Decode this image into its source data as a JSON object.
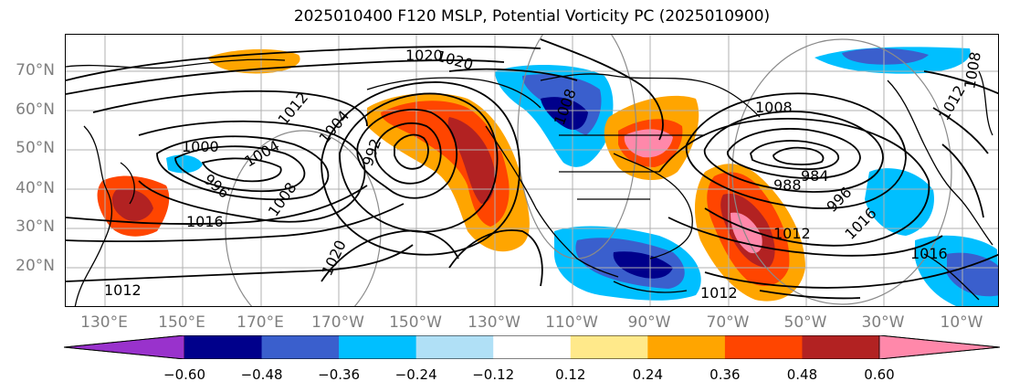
{
  "title": "2025010400 F120 MSLP, Potential Vorticity PC (2025010900)",
  "lat_labels": [
    "70°N",
    "60°N",
    "50°N",
    "40°N",
    "30°N",
    "20°N"
  ],
  "lon_labels": [
    "130°E",
    "150°E",
    "170°E",
    "170°W",
    "150°W",
    "130°W",
    "110°W",
    "90°W",
    "70°W",
    "50°W",
    "30°W",
    "10°W"
  ],
  "contour_labels": [
    "1020",
    "1012",
    "1004",
    "1000",
    "996",
    "1008",
    "1016",
    "1020",
    "1012",
    "992",
    "1004",
    "984",
    "988",
    "996",
    "1016",
    "1012",
    "1008",
    "1016",
    "1012",
    "1020",
    "1008",
    "1012",
    "1008"
  ],
  "colorbar": {
    "ticks": [
      "−0.60",
      "−0.48",
      "−0.36",
      "−0.24",
      "−0.12",
      "0.12",
      "0.24",
      "0.36",
      "0.48",
      "0.60"
    ],
    "colors": [
      "#9932cc",
      "#00008b",
      "#3a5fcd",
      "#00bfff",
      "#b0e0f6",
      "#ffffff",
      "#ffe98a",
      "#ffa500",
      "#ff4500",
      "#b22222",
      "#ff88aa"
    ]
  }
}
